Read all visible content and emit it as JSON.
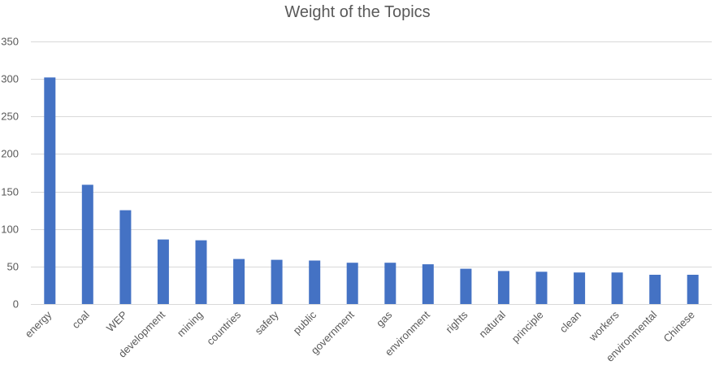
{
  "chart_data": {
    "type": "bar",
    "title": "Weight of the Topics",
    "xlabel": "",
    "ylabel": "",
    "categories": [
      "energy",
      "coal",
      "WEP",
      "development",
      "mining",
      "countries",
      "safety",
      "public",
      "government",
      "gas",
      "environment",
      "rights",
      "natural",
      "principle",
      "clean",
      "workers",
      "environmental",
      "Chinese"
    ],
    "values": [
      302,
      159,
      125,
      86,
      85,
      60,
      59,
      58,
      55,
      55,
      53,
      47,
      44,
      43,
      42,
      42,
      39,
      39
    ],
    "ylim": [
      0,
      350
    ],
    "yticks": [
      0,
      50,
      100,
      150,
      200,
      250,
      300,
      350
    ],
    "grid": true,
    "legend": "none",
    "bar_color": "#4472C4",
    "grid_color": "#d9d9d9"
  }
}
